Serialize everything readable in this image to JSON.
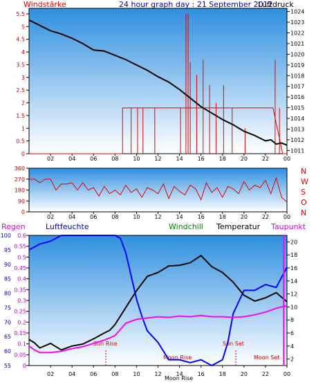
{
  "colors": {
    "sky_top": "#2e8fe0",
    "sky_bottom": "#ffffff",
    "wind": "#e00000",
    "pressure": "#000000",
    "direction": "#e00000",
    "humidity": "#0000ff",
    "temperature": "#000000",
    "dewpoint": "#ff00ff",
    "windchill": "#008000",
    "rain": "#cc0033"
  },
  "header": {
    "left": "Windstärke",
    "title": "24 hour graph day : 21 September 2012",
    "right": "Luftdruck"
  },
  "direction_labels": [
    "N",
    "W",
    "S",
    "O",
    "N"
  ],
  "bottom_header": {
    "regen": "Regen",
    "humidity": "Luftfeuchte",
    "windchill": "Windchill",
    "temperature": "Temperatur",
    "dewpoint": "Taupunkt"
  },
  "annotations": {
    "sun_rise": "Sun Rise",
    "sun_set": "Sun Set",
    "moon_rise": "Moon Rise",
    "moon_rise_2": "Moon Rise",
    "moon_set": "Moon Set"
  },
  "chart_data": [
    {
      "type": "line",
      "name": "wind_pressure",
      "x_ticks": [
        "02",
        "04",
        "06",
        "08",
        "10",
        "12",
        "14",
        "16",
        "18",
        "20",
        "22",
        "00"
      ],
      "y_left_ticks": [
        "0",
        "0.5",
        "1",
        "1.5",
        "2",
        "2.5",
        "3",
        "3.5",
        "4",
        "4.5",
        "5",
        "5.5"
      ],
      "y_right_ticks": [
        "1011",
        "1012",
        "1013",
        "1014",
        "1015",
        "1016",
        "1017",
        "1018",
        "1019",
        "1020",
        "1021",
        "1022",
        "1023",
        "1024"
      ],
      "ylim_left": [
        0,
        5.5
      ],
      "ylim_right": [
        1010.7,
        1024.3
      ],
      "pressure": {
        "x": [
          0,
          1,
          2,
          3,
          4,
          5,
          6,
          7,
          8,
          9,
          10,
          11,
          12,
          13,
          14,
          15,
          16,
          17,
          18,
          19,
          20,
          21,
          22,
          22.5,
          23,
          23.5,
          24
        ],
        "y": [
          1023.2,
          1022.7,
          1022.2,
          1021.9,
          1021.5,
          1021.0,
          1020.4,
          1020.3,
          1019.9,
          1019.5,
          1019.0,
          1018.5,
          1017.9,
          1017.4,
          1016.7,
          1015.9,
          1015.1,
          1014.5,
          1013.9,
          1013.4,
          1012.8,
          1012.4,
          1011.9,
          1012.0,
          1011.6,
          1011.7,
          1011.5
        ]
      },
      "wind": {
        "base_x": [
          8.7,
          12.3,
          14.3,
          18,
          21,
          22.7,
          23.6
        ],
        "base_y": [
          1.8,
          1.8,
          1.8,
          1.8,
          1.8,
          1.8,
          0
        ],
        "gusts": [
          [
            9.5,
            1.8
          ],
          [
            10.1,
            1.8
          ],
          [
            10.6,
            1.8
          ],
          [
            11.7,
            1.8
          ],
          [
            14.1,
            1.8
          ],
          [
            14.6,
            5.5
          ],
          [
            14.8,
            5.5
          ],
          [
            15.0,
            3.6
          ],
          [
            15.6,
            3.1
          ],
          [
            16.2,
            3.7
          ],
          [
            16.8,
            2.7
          ],
          [
            17.4,
            2.0
          ],
          [
            18.1,
            2.7
          ],
          [
            18.9,
            1.8
          ],
          [
            20.1,
            1.0
          ],
          [
            22.9,
            3.7
          ],
          [
            23.3,
            1.8
          ]
        ]
      }
    },
    {
      "type": "scatter",
      "name": "wind_direction",
      "y_ticks": [
        "0",
        "90",
        "180",
        "270",
        "360"
      ],
      "ylim": [
        0,
        360
      ],
      "values": {
        "x": [
          0,
          0.5,
          1,
          1.5,
          2,
          2.5,
          3,
          3.5,
          4,
          4.5,
          5,
          5.5,
          6,
          6.5,
          7,
          7.5,
          8,
          8.5,
          9,
          9.5,
          10,
          10.5,
          11,
          11.5,
          12,
          12.5,
          13,
          13.5,
          14,
          14.5,
          15,
          15.5,
          16,
          16.5,
          17,
          17.5,
          18,
          18.5,
          19,
          19.5,
          20,
          20.5,
          21,
          21.5,
          22,
          22.5,
          23,
          23.5,
          24
        ],
        "y": [
          270,
          270,
          240,
          270,
          270,
          180,
          230,
          230,
          240,
          180,
          240,
          180,
          200,
          130,
          210,
          150,
          180,
          140,
          220,
          160,
          190,
          120,
          200,
          180,
          150,
          230,
          110,
          210,
          170,
          140,
          220,
          190,
          100,
          240,
          160,
          200,
          120,
          210,
          190,
          150,
          250,
          180,
          220,
          200,
          260,
          150,
          280,
          120,
          80
        ]
      }
    },
    {
      "type": "line",
      "name": "humidity_temperature",
      "y_left_ticks": [
        "55",
        "60",
        "65",
        "70",
        "75",
        "80",
        "85",
        "90",
        "95",
        "100"
      ],
      "y_left2_ticks": [
        "0",
        "0.05",
        "0.1",
        "0.15",
        "0.2",
        "0.25",
        "0.3",
        "0.35",
        "0.4",
        "0.45",
        "0.5",
        "0.55",
        "0.6"
      ],
      "y_right_ticks": [
        "2",
        "4",
        "6",
        "8",
        "10",
        "12",
        "14",
        "16",
        "18",
        "20"
      ],
      "ylim_humidity": [
        55,
        100
      ],
      "ylim_temperature": [
        1,
        21
      ],
      "humidity": {
        "x": [
          0,
          0.5,
          1,
          2,
          3,
          4,
          5,
          6,
          7,
          7.5,
          8,
          8.5,
          9,
          9.5,
          10,
          10.5,
          11,
          12,
          13,
          14,
          15,
          16,
          17,
          17.5,
          18,
          18.5,
          19,
          20,
          21,
          22,
          23,
          24
        ],
        "y": [
          95,
          96,
          97,
          98,
          100,
          100,
          100,
          100,
          100,
          100,
          100,
          99,
          94,
          86,
          78,
          72,
          67,
          63,
          57,
          57,
          56,
          57,
          55,
          56,
          57,
          63,
          73,
          81,
          81,
          83,
          82,
          89
        ]
      },
      "temperature": {
        "x": [
          0,
          0.5,
          1,
          2,
          3,
          4,
          5,
          6,
          7,
          7.5,
          8,
          9,
          10,
          11,
          12,
          13,
          14,
          15,
          16,
          17,
          18,
          19,
          20,
          21,
          22,
          23,
          24
        ],
        "y": [
          5,
          4.5,
          3.7,
          4.4,
          3.4,
          4.0,
          4.3,
          5.1,
          6.0,
          6.4,
          7.3,
          9.9,
          12.5,
          14.7,
          15.3,
          16.3,
          16.4,
          16.8,
          17.9,
          16.2,
          15.3,
          13.8,
          11.8,
          10.9,
          11.4,
          12.2,
          10.8
        ]
      },
      "dewpoint": {
        "x": [
          0,
          0.5,
          1,
          2,
          3,
          4,
          5,
          6,
          7,
          8,
          9,
          10,
          11,
          12,
          13,
          14,
          15,
          16,
          17,
          18,
          19,
          20,
          21,
          22,
          23,
          24
        ],
        "y": [
          4,
          3.4,
          3,
          3,
          3.2,
          3.6,
          3.9,
          4.4,
          4.9,
          5.6,
          7.5,
          8.1,
          8.3,
          8.5,
          8.4,
          8.6,
          8.5,
          8.7,
          8.5,
          8.5,
          8.4,
          8.5,
          8.8,
          9.2,
          9.8,
          10.2
        ]
      },
      "rain_spike_x": 23.7
    }
  ]
}
